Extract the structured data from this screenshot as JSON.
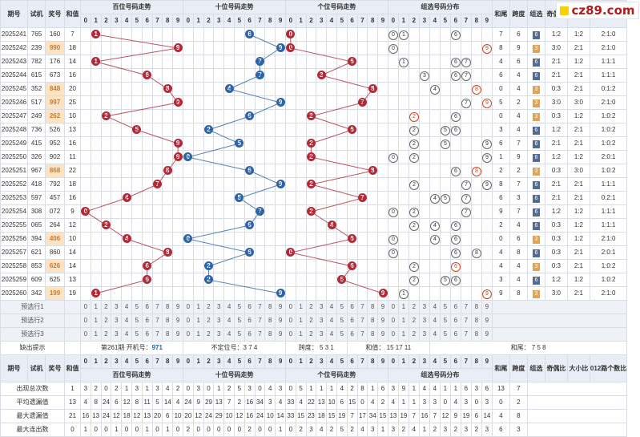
{
  "logo": "cz89.com",
  "header_labels": {
    "period": "期号",
    "trial": "试机",
    "prize": "奖号",
    "sum": "和值",
    "hundreds": "百位号码走势",
    "tens": "十位号码走势",
    "units": "个位号码走势",
    "group": "组选号码分布",
    "sum_tail": "和尾",
    "span": "跨度",
    "group_type": "组选",
    "odd_even": "奇偶比",
    "big_small": "大小比",
    "prime_ratio": "012路",
    "digits": [
      "0",
      "1",
      "2",
      "3",
      "4",
      "5",
      "6",
      "7",
      "8",
      "9"
    ]
  },
  "rows": [
    {
      "period": "2025241",
      "trial": "765",
      "prize": "160",
      "sum": "7",
      "tail": "7",
      "span": "6",
      "type": "6",
      "oe": "1:2",
      "bs": "1:2",
      "r012": "2:1:0"
    },
    {
      "period": "2025242",
      "trial": "239",
      "prize": "990",
      "sum": "18",
      "tail": "8",
      "span": "9",
      "type": "3",
      "oe": "3:0",
      "bs": "2:1",
      "r012": "2:1:0"
    },
    {
      "period": "2025243",
      "trial": "782",
      "prize": "176",
      "sum": "14",
      "tail": "4",
      "span": "6",
      "type": "6",
      "oe": "2:1",
      "bs": "1:2",
      "r012": "1:1:1"
    },
    {
      "period": "2025244",
      "trial": "615",
      "prize": "673",
      "sum": "16",
      "tail": "6",
      "span": "4",
      "type": "6",
      "oe": "2:1",
      "bs": "2:1",
      "r012": "1:1:1"
    },
    {
      "period": "2025245",
      "trial": "352",
      "prize": "848",
      "sum": "20",
      "tail": "0",
      "span": "4",
      "type": "3",
      "oe": "0:3",
      "bs": "2:1",
      "r012": "0:1:2"
    },
    {
      "period": "2025246",
      "trial": "517",
      "prize": "997",
      "sum": "25",
      "tail": "5",
      "span": "2",
      "type": "3",
      "oe": "3:0",
      "bs": "3:0",
      "r012": "2:1:0"
    },
    {
      "period": "2025247",
      "trial": "249",
      "prize": "262",
      "sum": "10",
      "tail": "0",
      "span": "4",
      "type": "3",
      "oe": "0:3",
      "bs": "1:2",
      "r012": "1:0:2"
    },
    {
      "period": "2025248",
      "trial": "736",
      "prize": "526",
      "sum": "13",
      "tail": "3",
      "span": "4",
      "type": "6",
      "oe": "1:2",
      "bs": "2:1",
      "r012": "1:0:2"
    },
    {
      "period": "2025249",
      "trial": "415",
      "prize": "952",
      "sum": "16",
      "tail": "6",
      "span": "7",
      "type": "6",
      "oe": "2:1",
      "bs": "2:1",
      "r012": "1:0:2"
    },
    {
      "period": "2025250",
      "trial": "326",
      "prize": "902",
      "sum": "11",
      "tail": "1",
      "span": "9",
      "type": "6",
      "oe": "1:2",
      "bs": "1:2",
      "r012": "2:0:1"
    },
    {
      "period": "2025251",
      "trial": "967",
      "prize": "868",
      "sum": "22",
      "tail": "2",
      "span": "2",
      "type": "3",
      "oe": "0:3",
      "bs": "3:0",
      "r012": "1:0:2"
    },
    {
      "period": "2025252",
      "trial": "418",
      "prize": "792",
      "sum": "18",
      "tail": "8",
      "span": "7",
      "type": "6",
      "oe": "2:1",
      "bs": "2:1",
      "r012": "1:1:1"
    },
    {
      "period": "2025253",
      "trial": "597",
      "prize": "457",
      "sum": "16",
      "tail": "6",
      "span": "3",
      "type": "6",
      "oe": "2:1",
      "bs": "2:1",
      "r012": "0:2:1"
    },
    {
      "period": "2025254",
      "trial": "308",
      "prize": "072",
      "sum": "9",
      "tail": "9",
      "span": "7",
      "type": "6",
      "oe": "1:2",
      "bs": "1:2",
      "r012": "1:1:1"
    },
    {
      "period": "2025255",
      "trial": "065",
      "prize": "264",
      "sum": "12",
      "tail": "2",
      "span": "4",
      "type": "6",
      "oe": "0:3",
      "bs": "1:2",
      "r012": "1:1:1"
    },
    {
      "period": "2025256",
      "trial": "394",
      "prize": "406",
      "sum": "10",
      "tail": "0",
      "span": "6",
      "type": "3",
      "oe": "0:3",
      "bs": "1:2",
      "r012": "2:1:0"
    },
    {
      "period": "2025257",
      "trial": "621",
      "prize": "860",
      "sum": "14",
      "tail": "4",
      "span": "8",
      "type": "6",
      "oe": "0:3",
      "bs": "2:1",
      "r012": "2:0:1"
    },
    {
      "period": "2025258",
      "trial": "853",
      "prize": "626",
      "sum": "14",
      "tail": "4",
      "span": "4",
      "type": "3",
      "oe": "0:3",
      "bs": "2:1",
      "r012": "1:0:2"
    },
    {
      "period": "2025259",
      "trial": "609",
      "prize": "625",
      "sum": "13",
      "tail": "3",
      "span": "4",
      "type": "6",
      "oe": "1:2",
      "bs": "1:2",
      "r012": "1:0:2"
    },
    {
      "period": "2025260",
      "trial": "342",
      "prize": "199",
      "sum": "19",
      "tail": "9",
      "span": "8",
      "type": "3",
      "oe": "3:0",
      "bs": "2:1",
      "r012": "2:1:0"
    }
  ],
  "predictions": [
    "预选行1",
    "预选行2",
    "预选行3"
  ],
  "hint": {
    "label": "缺出提示",
    "issue": "第261期 开机号：",
    "issue_value": "971",
    "pos": "不定位号：3 7 4",
    "span": "跨度： 5 3 1",
    "sum": "和值： 15 17 11",
    "tail": "和尾： 7 5 8"
  },
  "footer_header": {
    "period": "期号",
    "trial": "试机",
    "prize": "奖号",
    "sum": "和值",
    "hundreds": "百位号码走势",
    "tens": "十位号码走势",
    "units": "个位号码走势",
    "group": "组选号码分布",
    "sum_tail": "和尾",
    "span": "跨度",
    "group_type": "组选",
    "odd_even": "奇偶比",
    "big_small": "大小比",
    "r012": "012路个数比"
  },
  "stats": [
    {
      "label": "出现总次数",
      "vals": [
        "1",
        "3",
        "2",
        "0",
        "2",
        "1",
        "3",
        "1",
        "3",
        "4",
        "2",
        "0",
        "3",
        "0",
        "1",
        "2",
        "5",
        "3",
        "0",
        "4",
        "3",
        "0",
        "5",
        "1",
        "1",
        "1",
        "4",
        "2",
        "8",
        "1",
        "6",
        "3",
        "9",
        "1",
        "4",
        "4",
        "1",
        "1",
        "6",
        "3",
        "6"
      ],
      "tail": "13",
      "span": "7"
    },
    {
      "label": "平均遗漏值",
      "vals": [
        "13",
        "4",
        "8",
        "24",
        "6",
        "12",
        "8",
        "11",
        "5",
        "14",
        "4",
        "24",
        "9",
        "29",
        "13",
        "7",
        "2",
        "16",
        "34",
        "3",
        "4",
        "33",
        "4",
        "22",
        "13",
        "10",
        "6",
        "15",
        "0",
        "4",
        "2",
        "4",
        "1",
        "1",
        "3",
        "3",
        "0",
        "4",
        "3",
        "0",
        "3"
      ],
      "tail": "0",
      "span": "2"
    },
    {
      "label": "最大遗漏值",
      "vals": [
        "21",
        "16",
        "13",
        "24",
        "12",
        "18",
        "12",
        "13",
        "20",
        "6",
        "10",
        "20",
        "12",
        "24",
        "29",
        "10",
        "12",
        "16",
        "24",
        "10",
        "14",
        "33",
        "15",
        "23",
        "18",
        "15",
        "19",
        "7",
        "17",
        "34",
        "15",
        "13",
        "19",
        "7",
        "16",
        "7",
        "12",
        "9",
        "19",
        "6",
        "14"
      ],
      "tail": "4",
      "span": "8"
    },
    {
      "label": "最大连出数",
      "vals": [
        "0",
        "1",
        "0",
        "0",
        "1",
        "0",
        "0",
        "1",
        "0",
        "1",
        "0",
        "2",
        "0",
        "0",
        "0",
        "0",
        "0",
        "2",
        "0",
        "0",
        "1",
        "0",
        "2",
        "3",
        "4",
        "2",
        "5",
        "2",
        "4",
        "3",
        "1",
        "3",
        "2",
        "4",
        "1",
        "2",
        "3",
        "2",
        "3",
        "2",
        "3"
      ],
      "tail": "6",
      "span": "3"
    }
  ]
}
